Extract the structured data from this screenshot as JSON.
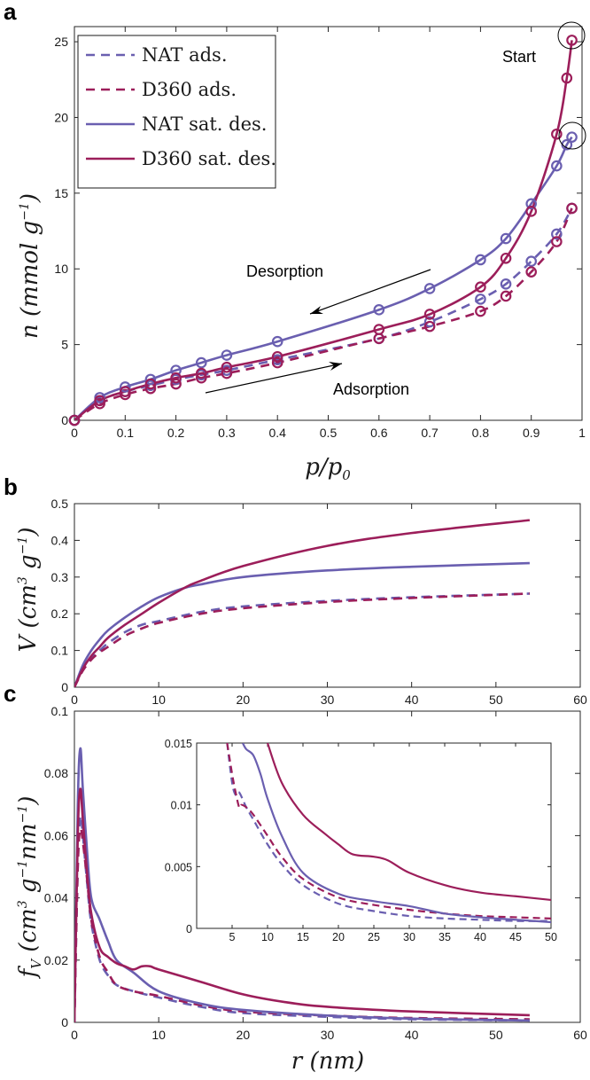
{
  "colors": {
    "NAT": "#6a5fb0",
    "D360": "#9c1e5a"
  },
  "chart_data": [
    {
      "panel": "a",
      "type": "line",
      "xlabel": "p/p0",
      "ylabel": "n (mmol g−1)",
      "xlim": [
        0,
        1
      ],
      "ylim": [
        0,
        26
      ],
      "xticks": [
        0,
        0.1,
        0.2,
        0.3,
        0.4,
        0.5,
        0.6,
        0.7,
        0.8,
        0.9,
        1
      ],
      "xtick_labels": [
        "0",
        "0.1",
        "0.2",
        "0.3",
        "0.4",
        "0.5",
        "0.6",
        "0.7",
        "0.8",
        "0.9",
        "1"
      ],
      "yticks": [
        0,
        5,
        10,
        15,
        20,
        25
      ],
      "legend_position": "top-left",
      "series": [
        {
          "name": "NAT ads.",
          "color_key": "NAT",
          "dash": true,
          "markers": true,
          "x": [
            0,
            0.05,
            0.1,
            0.15,
            0.2,
            0.25,
            0.3,
            0.4,
            0.6,
            0.7,
            0.8,
            0.85,
            0.9,
            0.95,
            0.98
          ],
          "y": [
            0,
            1.3,
            1.9,
            2.3,
            2.7,
            3.0,
            3.3,
            4.0,
            5.4,
            6.5,
            8.0,
            9.0,
            10.5,
            12.3,
            14.0
          ]
        },
        {
          "name": "D360 ads.",
          "color_key": "D360",
          "dash": true,
          "markers": true,
          "x": [
            0,
            0.05,
            0.1,
            0.15,
            0.2,
            0.25,
            0.3,
            0.4,
            0.6,
            0.7,
            0.8,
            0.85,
            0.9,
            0.95,
            0.98
          ],
          "y": [
            0,
            1.1,
            1.7,
            2.1,
            2.4,
            2.8,
            3.1,
            3.8,
            5.4,
            6.2,
            7.2,
            8.2,
            9.8,
            11.8,
            14.0
          ]
        },
        {
          "name": "NAT sat. des.",
          "color_key": "NAT",
          "dash": false,
          "markers": true,
          "x": [
            0,
            0.05,
            0.1,
            0.15,
            0.2,
            0.25,
            0.3,
            0.4,
            0.6,
            0.7,
            0.8,
            0.85,
            0.9,
            0.95,
            0.97,
            0.98
          ],
          "y": [
            0,
            1.5,
            2.2,
            2.7,
            3.3,
            3.8,
            4.3,
            5.2,
            7.3,
            8.7,
            10.6,
            12.0,
            14.3,
            16.8,
            18.2,
            18.7
          ]
        },
        {
          "name": "D360 sat. des.",
          "color_key": "D360",
          "dash": false,
          "markers": true,
          "x": [
            0,
            0.05,
            0.1,
            0.15,
            0.2,
            0.25,
            0.3,
            0.4,
            0.6,
            0.7,
            0.8,
            0.85,
            0.9,
            0.95,
            0.97,
            0.98
          ],
          "y": [
            0,
            1.3,
            1.9,
            2.4,
            2.8,
            3.1,
            3.5,
            4.2,
            6.0,
            7.0,
            8.8,
            10.7,
            13.8,
            18.9,
            22.6,
            25.1
          ]
        }
      ],
      "annotations": {
        "start": "Start",
        "desorption": "Desorption",
        "adsorption": "Adsorption"
      }
    },
    {
      "panel": "b",
      "type": "line",
      "ylabel": "V (cm3 g−1)",
      "xlim": [
        0,
        60
      ],
      "ylim": [
        0,
        0.5
      ],
      "xticks": [
        0,
        10,
        20,
        30,
        40,
        50,
        60
      ],
      "yticks": [
        0,
        0.1,
        0.2,
        0.3,
        0.4,
        0.5
      ],
      "series": [
        {
          "name": "NAT ads.",
          "color_key": "NAT",
          "dash": true,
          "x": [
            0,
            1,
            2,
            3,
            4,
            6,
            8,
            10,
            15,
            20,
            30,
            40,
            54
          ],
          "y": [
            0,
            0.05,
            0.08,
            0.1,
            0.12,
            0.15,
            0.17,
            0.18,
            0.205,
            0.22,
            0.235,
            0.245,
            0.255
          ]
        },
        {
          "name": "D360 ads.",
          "color_key": "D360",
          "dash": true,
          "x": [
            0,
            1,
            2,
            3,
            4,
            6,
            8,
            10,
            15,
            20,
            30,
            40,
            54
          ],
          "y": [
            0,
            0.045,
            0.075,
            0.095,
            0.11,
            0.14,
            0.16,
            0.175,
            0.2,
            0.215,
            0.232,
            0.243,
            0.255
          ]
        },
        {
          "name": "NAT sat. des.",
          "color_key": "NAT",
          "dash": false,
          "x": [
            0,
            1,
            2,
            3,
            4,
            6,
            8,
            10,
            13,
            15,
            20,
            30,
            40,
            54
          ],
          "y": [
            0,
            0.06,
            0.1,
            0.13,
            0.155,
            0.19,
            0.22,
            0.245,
            0.27,
            0.28,
            0.3,
            0.318,
            0.328,
            0.338
          ]
        },
        {
          "name": "D360 sat. des.",
          "color_key": "D360",
          "dash": false,
          "x": [
            0,
            1,
            2,
            3,
            4,
            6,
            8,
            10,
            13,
            15,
            20,
            30,
            40,
            54
          ],
          "y": [
            0,
            0.05,
            0.085,
            0.11,
            0.135,
            0.17,
            0.2,
            0.23,
            0.27,
            0.29,
            0.33,
            0.385,
            0.42,
            0.455
          ]
        }
      ]
    },
    {
      "panel": "c",
      "type": "line",
      "xlabel": "r (nm)",
      "ylabel": "fV (cm3 g−1nm−1)",
      "xlim": [
        0,
        60
      ],
      "ylim": [
        0,
        0.1
      ],
      "xticks": [
        0,
        10,
        20,
        30,
        40,
        50,
        60
      ],
      "yticks": [
        0,
        0.02,
        0.04,
        0.06,
        0.08,
        0.1
      ],
      "series": [
        {
          "name": "NAT ads.",
          "color_key": "NAT",
          "dash": true,
          "x": [
            0,
            0.4,
            0.7,
            1,
            1.5,
            2,
            3,
            4,
            5,
            7,
            10,
            15,
            20,
            30,
            40,
            54
          ],
          "y": [
            0,
            0.05,
            0.066,
            0.06,
            0.045,
            0.032,
            0.02,
            0.015,
            0.012,
            0.01,
            0.008,
            0.005,
            0.003,
            0.0018,
            0.001,
            0.0006
          ]
        },
        {
          "name": "D360 ads.",
          "color_key": "D360",
          "dash": true,
          "x": [
            0,
            0.4,
            0.7,
            1,
            1.5,
            2,
            3,
            4,
            5,
            7,
            10,
            15,
            20,
            30,
            40,
            54
          ],
          "y": [
            0,
            0.05,
            0.062,
            0.058,
            0.046,
            0.033,
            0.021,
            0.016,
            0.012,
            0.01,
            0.0085,
            0.0055,
            0.0035,
            0.0022,
            0.0014,
            0.001
          ]
        },
        {
          "name": "NAT sat. des.",
          "color_key": "NAT",
          "dash": false,
          "x": [
            0,
            0.4,
            0.7,
            1,
            1.5,
            2,
            3,
            4,
            5,
            7,
            10,
            15,
            20,
            30,
            40,
            54
          ],
          "y": [
            0,
            0.07,
            0.088,
            0.075,
            0.055,
            0.04,
            0.033,
            0.026,
            0.02,
            0.016,
            0.01,
            0.006,
            0.004,
            0.0022,
            0.0012,
            0.0006
          ]
        },
        {
          "name": "D360 sat. des.",
          "color_key": "D360",
          "dash": false,
          "x": [
            0,
            0.4,
            0.7,
            1,
            1.5,
            2,
            3,
            4,
            5,
            6,
            7,
            8,
            9,
            10,
            15,
            20,
            25,
            30,
            40,
            54
          ],
          "y": [
            0,
            0.06,
            0.075,
            0.065,
            0.048,
            0.035,
            0.024,
            0.021,
            0.019,
            0.018,
            0.017,
            0.018,
            0.018,
            0.017,
            0.013,
            0.009,
            0.0065,
            0.005,
            0.0035,
            0.0023
          ]
        }
      ],
      "inset": {
        "xlim": [
          0,
          50
        ],
        "ylim": [
          0,
          0.015
        ],
        "xticks": [
          5,
          10,
          15,
          20,
          25,
          30,
          35,
          40,
          45,
          50
        ],
        "yticks": [
          0,
          0.005,
          0.01,
          0.015
        ],
        "ytick_labels": [
          "0",
          "0.005",
          "0.01",
          "0.015"
        ],
        "series": [
          {
            "name": "NAT ads.",
            "color_key": "NAT",
            "dash": true,
            "x": [
              4.3,
              5,
              5.5,
              6,
              7,
              8,
              10,
              12,
              15,
              20,
              25,
              30,
              35,
              40,
              45,
              50
            ],
            "y": [
              0.015,
              0.0118,
              0.0108,
              0.011,
              0.0098,
              0.0088,
              0.0068,
              0.0052,
              0.0035,
              0.002,
              0.0014,
              0.001,
              0.0008,
              0.0007,
              0.0006,
              0.0006
            ]
          },
          {
            "name": "D360 ads.",
            "color_key": "D360",
            "dash": true,
            "x": [
              4.3,
              5,
              5.5,
              6,
              6.3,
              7,
              8,
              10,
              12,
              15,
              20,
              25,
              30,
              35,
              40,
              45,
              50
            ],
            "y": [
              0.015,
              0.0125,
              0.011,
              0.0098,
              0.01,
              0.0098,
              0.0092,
              0.0075,
              0.0058,
              0.004,
              0.0025,
              0.0019,
              0.0015,
              0.0012,
              0.001,
              0.0009,
              0.0008
            ]
          },
          {
            "name": "NAT sat. des.",
            "color_key": "NAT",
            "dash": false,
            "x": [
              6.5,
              7,
              8,
              9,
              10,
              12,
              15,
              20,
              25,
              30,
              35,
              40,
              45,
              50
            ],
            "y": [
              0.015,
              0.0145,
              0.014,
              0.0125,
              0.0105,
              0.0075,
              0.0045,
              0.0028,
              0.0022,
              0.0018,
              0.0012,
              0.0009,
              0.0007,
              0.0005
            ]
          },
          {
            "name": "D360 sat. des.",
            "color_key": "D360",
            "dash": false,
            "x": [
              10,
              12,
              15,
              18,
              20,
              22,
              25,
              27,
              30,
              35,
              40,
              45,
              50
            ],
            "y": [
              0.015,
              0.0118,
              0.0092,
              0.0077,
              0.0068,
              0.006,
              0.0058,
              0.0055,
              0.0045,
              0.0035,
              0.0029,
              0.0026,
              0.0023
            ]
          }
        ]
      }
    }
  ],
  "labels": {
    "panel_a": "a",
    "panel_b": "b",
    "panel_c": "c",
    "legend": [
      "NAT ads.",
      "D360 ads.",
      "NAT sat. des.",
      "D360 sat. des."
    ]
  }
}
